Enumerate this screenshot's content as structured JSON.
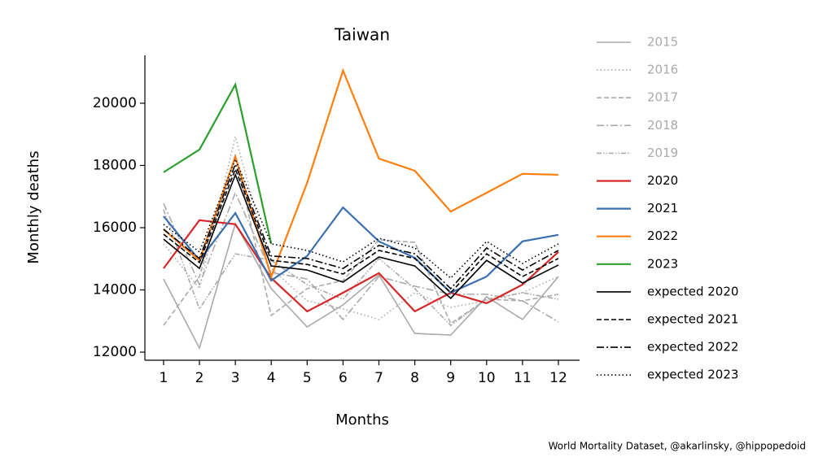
{
  "chart_data": {
    "type": "line",
    "title": "Taiwan",
    "x_label": "Months",
    "y_label": "Monthly deaths",
    "source": "World Mortality Dataset, @akarlinsky, @hippopedoid",
    "x": [
      1,
      2,
      3,
      4,
      5,
      6,
      7,
      8,
      9,
      10,
      11,
      12
    ],
    "xlim": [
      0.48,
      12.59
    ],
    "xticks": [
      1,
      2,
      3,
      4,
      5,
      6,
      7,
      8,
      9,
      10,
      11,
      12
    ],
    "ylim": [
      11740,
      21540
    ],
    "yticks": [
      12000,
      14000,
      16000,
      18000,
      20000
    ],
    "legend": "outside right",
    "series": [
      {
        "name": "2015",
        "color": "#aaaaaa",
        "dash": "solid",
        "values": [
          14350,
          12130,
          16130,
          14040,
          12810,
          13520,
          14480,
          12600,
          12550,
          13780,
          13050,
          14430
        ]
      },
      {
        "name": "2016",
        "color": "#aaaaaa",
        "dash": "dotted",
        "values": [
          15480,
          14040,
          18930,
          14690,
          13650,
          13390,
          13050,
          13910,
          13440,
          13650,
          13910,
          14430
        ]
      },
      {
        "name": "2017",
        "color": "#aaaaaa",
        "dash": "dashed",
        "values": [
          12860,
          14430,
          18350,
          13180,
          14040,
          14300,
          15610,
          15530,
          12920,
          13700,
          13650,
          13860
        ]
      },
      {
        "name": "2018",
        "color": "#aaaaaa",
        "dash": "dashdot",
        "values": [
          16780,
          14170,
          17120,
          14560,
          14350,
          13050,
          14430,
          14120,
          13860,
          13860,
          13650,
          12970
        ]
      },
      {
        "name": "2019",
        "color": "#aaaaaa",
        "dash": "dashdotdot",
        "values": [
          16580,
          13390,
          15160,
          14950,
          14170,
          13700,
          15010,
          14040,
          12860,
          13700,
          13910,
          13700
        ]
      },
      {
        "name": "2020",
        "color": "#d62728",
        "dash": "solid",
        "values": [
          14690,
          16240,
          16110,
          14380,
          13310,
          13910,
          14540,
          13310,
          13910,
          13570,
          14170,
          15220
        ]
      },
      {
        "name": "2021",
        "color": "#3a6fb0",
        "dash": "solid",
        "values": [
          16370,
          14950,
          16470,
          14300,
          15090,
          16650,
          15560,
          15030,
          13910,
          14430,
          15560,
          15770
        ]
      },
      {
        "name": "2022",
        "color": "#ff7f0e",
        "dash": "solid",
        "values": [
          15950,
          14950,
          18280,
          14430,
          17440,
          21050,
          18220,
          17830,
          16520,
          17120,
          17730,
          17700
        ]
      },
      {
        "name": "2023",
        "color": "#2ca02c",
        "dash": "solid",
        "values": [
          17780,
          18510,
          20600,
          15480,
          null,
          null,
          null,
          null,
          null,
          null,
          null,
          null
        ]
      },
      {
        "name": "expected 2020",
        "color": "#000000",
        "dash": "solid",
        "values": [
          15630,
          14690,
          17700,
          14770,
          14640,
          14250,
          15060,
          14770,
          13730,
          14950,
          14220,
          14800
        ]
      },
      {
        "name": "expected 2021",
        "color": "#000000",
        "dash": "dashed",
        "values": [
          15790,
          14880,
          17880,
          14950,
          14820,
          14510,
          15270,
          15010,
          13910,
          15160,
          14430,
          15010
        ]
      },
      {
        "name": "expected 2022",
        "color": "#000000",
        "dash": "dashdot",
        "values": [
          15950,
          15010,
          18040,
          15090,
          15010,
          14690,
          15430,
          15160,
          14040,
          15350,
          14640,
          15270
        ]
      },
      {
        "name": "expected 2023",
        "color": "#000000",
        "dash": "dotted",
        "values": [
          16110,
          15220,
          18200,
          15480,
          15270,
          14900,
          15660,
          15350,
          14380,
          15560,
          14850,
          15480
        ]
      }
    ]
  }
}
